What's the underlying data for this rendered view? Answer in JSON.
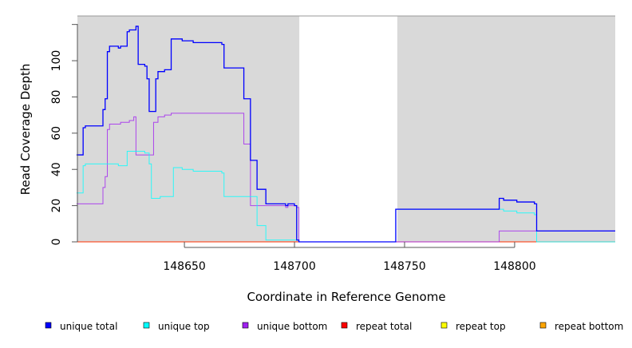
{
  "chart_data": {
    "type": "line",
    "step": true,
    "title": "",
    "xlabel": "Coordinate in Reference Genome",
    "ylabel": "Read Coverage Depth",
    "xlim": [
      148601.4,
      148845.7
    ],
    "ylim": [
      0,
      124.7
    ],
    "x_ticks": [
      148650,
      148700,
      148750,
      148800
    ],
    "x_tick_labels": [
      "148650",
      "148700",
      "148750",
      "148800"
    ],
    "y_ticks": [
      0,
      20,
      40,
      60,
      80,
      100,
      120
    ],
    "y_tick_labels": [
      "0",
      "20",
      "40",
      "60",
      "80",
      "100",
      ""
    ],
    "shaded_regions": [
      [
        148601.4,
        148702.2
      ],
      [
        148746.7,
        148845.7
      ]
    ],
    "shade_color": "#d9d9d9",
    "legend_position": "bottom",
    "series": [
      {
        "name": "unique total",
        "color": "#0000ff",
        "x": [
          148601,
          148604,
          148605,
          148613,
          148614,
          148615,
          148616,
          148620,
          148621,
          148624,
          148625,
          148628,
          148629,
          148632,
          148633,
          148634,
          148637,
          148638,
          148641,
          148644,
          148649,
          148654,
          148667,
          148668,
          148677,
          148680,
          148683,
          148687,
          148696,
          148697,
          148700,
          148701,
          148702,
          148746,
          148793,
          148795,
          148801,
          148809,
          148810
        ],
        "y": [
          48,
          63,
          64,
          73,
          79,
          105,
          108,
          107,
          108,
          116,
          117,
          119,
          98,
          97,
          90,
          72,
          90,
          94,
          95,
          112,
          111,
          110,
          109,
          96,
          79,
          45,
          29,
          21,
          20,
          21,
          20,
          1,
          0,
          18,
          24,
          23,
          22,
          21,
          6
        ]
      },
      {
        "name": "unique top",
        "color": "#00ffff",
        "x": [
          148601,
          148604,
          148605,
          148620,
          148624,
          148632,
          148634,
          148635,
          148639,
          148645,
          148649,
          148654,
          148667,
          148668,
          148683,
          148687,
          148702,
          148746,
          148795,
          148801,
          148809,
          148810
        ],
        "y": [
          27,
          42,
          43,
          42,
          50,
          49,
          43,
          24,
          25,
          41,
          40,
          39,
          38,
          25,
          9,
          1,
          0,
          18,
          17,
          16,
          15,
          0
        ]
      },
      {
        "name": "unique bottom",
        "color": "#a020f0",
        "x": [
          148601,
          148613,
          148614,
          148615,
          148616,
          148621,
          148625,
          148627,
          148628,
          148636,
          148638,
          148641,
          148644,
          148677,
          148680,
          148696,
          148697,
          148701,
          148702,
          148793
        ],
        "y": [
          21,
          30,
          36,
          62,
          65,
          66,
          67,
          69,
          48,
          66,
          69,
          70,
          71,
          54,
          20,
          19,
          20,
          19,
          0,
          6
        ]
      },
      {
        "name": "repeat total",
        "color": "#ff0000",
        "x": [
          148601
        ],
        "y": [
          0
        ]
      },
      {
        "name": "repeat top",
        "color": "#ffff00",
        "x": [
          148601
        ],
        "y": [
          0
        ]
      },
      {
        "name": "repeat bottom",
        "color": "#ffa500",
        "x": [
          148601
        ],
        "y": [
          0
        ]
      }
    ]
  }
}
